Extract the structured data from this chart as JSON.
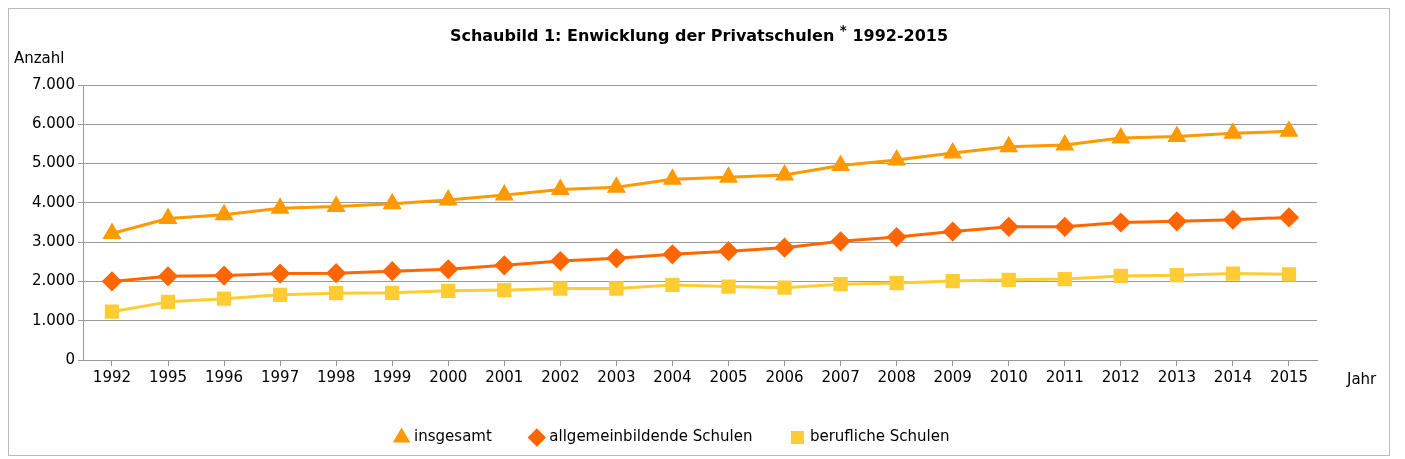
{
  "chart_data": {
    "type": "line",
    "title": "Schaubild 1: Enwicklung der Privatschulen $^{*}$ 1992-2015",
    "ylabel": "Anzahl",
    "xlabel": "Jahr",
    "categories": [
      "1992",
      "1995",
      "1996",
      "1997",
      "1998",
      "1999",
      "2000",
      "2001",
      "2002",
      "2003",
      "2004",
      "2005",
      "2006",
      "2007",
      "2008",
      "2009",
      "2010",
      "2011",
      "2012",
      "2013",
      "2014",
      "2015"
    ],
    "series": [
      {
        "name": "insgesamt",
        "color": "#ff9900",
        "marker": "triangle",
        "values": [
          3220,
          3600,
          3700,
          3860,
          3910,
          3980,
          4070,
          4200,
          4340,
          4400,
          4600,
          4650,
          4710,
          4950,
          5090,
          5270,
          5430,
          5470,
          5650,
          5690,
          5770,
          5820
        ]
      },
      {
        "name": "allgemeinbildende Schulen",
        "color": "#ff6600",
        "marker": "diamond",
        "values": [
          2000,
          2130,
          2150,
          2200,
          2210,
          2260,
          2310,
          2410,
          2520,
          2590,
          2690,
          2770,
          2860,
          3020,
          3130,
          3270,
          3390,
          3390,
          3500,
          3530,
          3570,
          3630
        ]
      },
      {
        "name": "berufliche Schulen",
        "color": "#ffcc33",
        "marker": "square",
        "values": [
          1230,
          1480,
          1560,
          1660,
          1700,
          1710,
          1760,
          1780,
          1820,
          1820,
          1910,
          1870,
          1840,
          1930,
          1960,
          2010,
          2040,
          2060,
          2140,
          2160,
          2200,
          2180
        ]
      }
    ],
    "ylim": [
      0,
      7000
    ],
    "yticks": [
      {
        "value": 0,
        "label": "0"
      },
      {
        "value": 1000,
        "label": "1.000"
      },
      {
        "value": 2000,
        "label": "2.000"
      },
      {
        "value": 3000,
        "label": "3.000"
      },
      {
        "value": 4000,
        "label": "4.000"
      },
      {
        "value": 5000,
        "label": "5.000"
      },
      {
        "value": 6000,
        "label": "6.000"
      },
      {
        "value": 7000,
        "label": "7.000"
      }
    ],
    "grid": "y",
    "legend": "bottom",
    "line_style": "solid"
  }
}
